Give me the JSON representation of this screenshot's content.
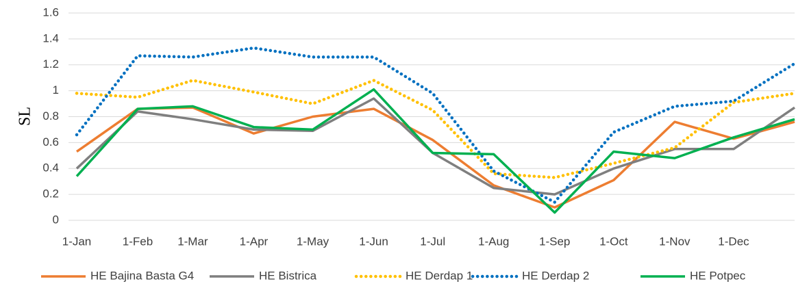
{
  "chart_data": {
    "type": "line",
    "ylabel": "SL",
    "x": [
      0,
      31,
      59,
      90,
      120,
      151,
      181,
      212,
      243,
      273,
      304,
      334,
      365
    ],
    "xlim": [
      0,
      365
    ],
    "xticks": [
      {
        "value": 0,
        "label": "1-Jan"
      },
      {
        "value": 31,
        "label": "1-Feb"
      },
      {
        "value": 59,
        "label": "1-Mar"
      },
      {
        "value": 90,
        "label": "1-Apr"
      },
      {
        "value": 120,
        "label": "1-May"
      },
      {
        "value": 151,
        "label": "1-Jun"
      },
      {
        "value": 181,
        "label": "1-Jul"
      },
      {
        "value": 212,
        "label": "1-Aug"
      },
      {
        "value": 243,
        "label": "1-Sep"
      },
      {
        "value": 273,
        "label": "1-Oct"
      },
      {
        "value": 304,
        "label": "1-Nov"
      },
      {
        "value": 334,
        "label": "1-Dec"
      }
    ],
    "ylim": [
      0,
      1.6
    ],
    "yticks": [
      0,
      0.2,
      0.4,
      0.6,
      0.8,
      1,
      1.2,
      1.4,
      1.6
    ],
    "grid": true,
    "legend": "bottom",
    "series": [
      {
        "name": "HE Bajina Basta G4",
        "color": "#ed7d31",
        "style": "solid",
        "values": [
          0.53,
          0.86,
          0.87,
          0.67,
          0.8,
          0.86,
          0.62,
          0.27,
          0.1,
          0.31,
          0.76,
          0.63,
          0.76
        ]
      },
      {
        "name": "HE Bistrica",
        "color": "#7f7f7f",
        "style": "solid",
        "values": [
          0.4,
          0.84,
          0.78,
          0.7,
          0.69,
          0.94,
          0.52,
          0.25,
          0.2,
          0.4,
          0.55,
          0.55,
          0.87
        ]
      },
      {
        "name": "HE Derdap 1",
        "color": "#ffc000",
        "style": "dotted",
        "values": [
          0.98,
          0.95,
          1.08,
          0.99,
          0.9,
          1.08,
          0.85,
          0.36,
          0.33,
          0.44,
          0.56,
          0.91,
          0.98
        ]
      },
      {
        "name": "HE Derdap 2",
        "color": "#0070c0",
        "style": "dotted",
        "values": [
          0.66,
          1.27,
          1.26,
          1.33,
          1.26,
          1.26,
          0.98,
          0.38,
          0.14,
          0.68,
          0.88,
          0.92,
          1.21
        ]
      },
      {
        "name": "HE Potpec",
        "color": "#00b050",
        "style": "solid",
        "values": [
          0.34,
          0.86,
          0.88,
          0.72,
          0.7,
          1.01,
          0.52,
          0.51,
          0.06,
          0.53,
          0.48,
          0.64,
          0.78
        ]
      }
    ]
  }
}
